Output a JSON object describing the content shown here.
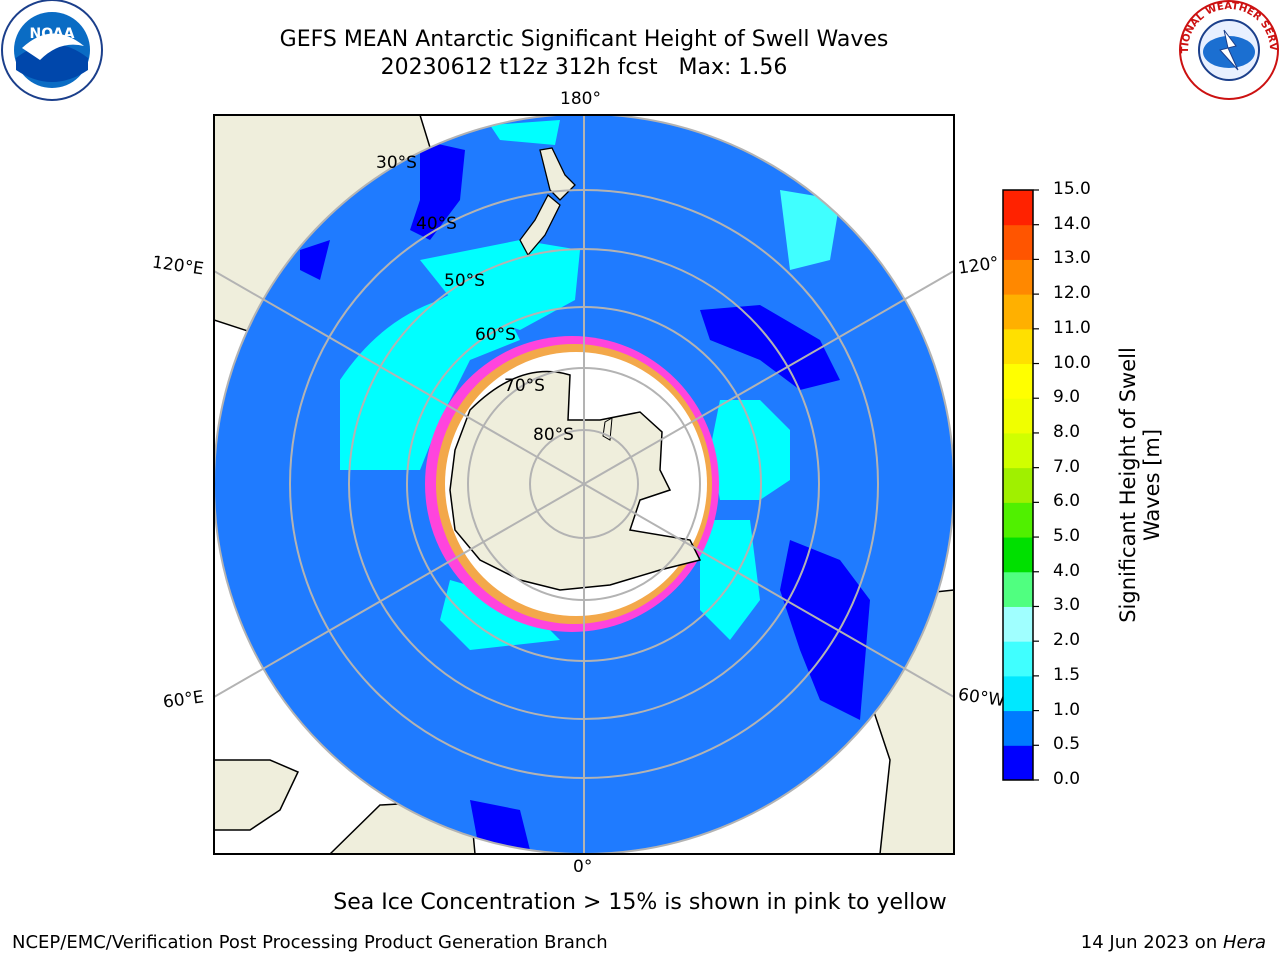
{
  "title": {
    "line1": "GEFS MEAN Antarctic Significant Height of Swell Waves",
    "line2": "20230612 t12z 312h fcst   Max: 1.56"
  },
  "logos": {
    "left": {
      "name": "noaa-logo",
      "text": "NOAA"
    },
    "right": {
      "name": "national-weather-service-logo",
      "text": "NATIONAL WEATHER SERVICE"
    }
  },
  "map": {
    "projection": "south-polar-stereographic",
    "longitude_labels": {
      "top": "180°",
      "bottom": "0°",
      "upper_left": "120°E",
      "lower_left": "60°E",
      "upper_right": "120°",
      "lower_right": "60°W"
    },
    "latitude_labels": [
      "30°S",
      "40°S",
      "50°S",
      "60°S",
      "70°S",
      "80°S"
    ],
    "colors": {
      "land": "#efeedc",
      "ocean_main": "#1f7bff",
      "ocean_low": "#0000ff",
      "swell_mid": "#00ffff",
      "ice_pink": "#ff44dd",
      "ice_yellow": "#f3a84a",
      "grid": "#b3b3b3"
    }
  },
  "colorbar": {
    "label": "Significant Height of Swell\nWaves [m]",
    "ticks": [
      "0.0",
      "0.5",
      "1.0",
      "1.5",
      "2.0",
      "3.0",
      "4.0",
      "5.0",
      "6.0",
      "7.0",
      "8.0",
      "9.0",
      "10.0",
      "11.0",
      "12.0",
      "13.0",
      "14.0",
      "15.0"
    ],
    "colors": [
      "#0000ff",
      "#007bff",
      "#00e8ff",
      "#40ffff",
      "#a0ffff",
      "#50ff80",
      "#00e000",
      "#50f000",
      "#a0f000",
      "#d0ff00",
      "#f0ff00",
      "#ffff00",
      "#ffe000",
      "#ffb000",
      "#ff8800",
      "#ff5500",
      "#ff2200"
    ]
  },
  "note": "Sea Ice Concentration > 15% is shown in pink to yellow",
  "footer": {
    "left": "NCEP/EMC/Verification Post Processing Product Generation Branch",
    "right_date": "14 Jun 2023 on ",
    "right_machine": "Hera"
  }
}
